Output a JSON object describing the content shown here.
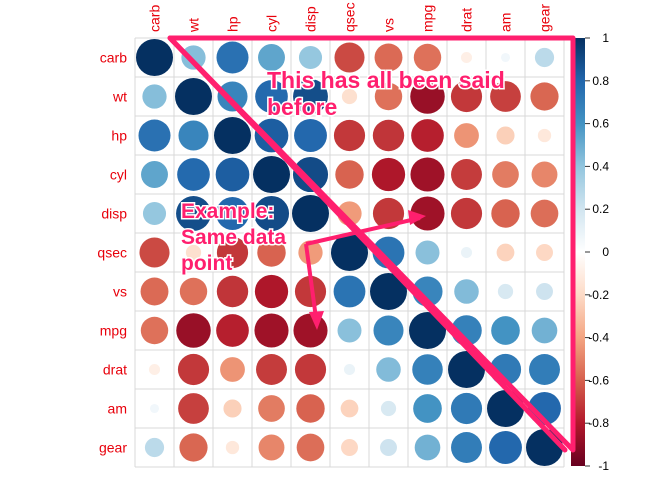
{
  "chart_data": {
    "type": "heatmap",
    "title": "",
    "variables": [
      "carb",
      "wt",
      "hp",
      "cyl",
      "disp",
      "qsec",
      "vs",
      "mpg",
      "drat",
      "am",
      "gear"
    ],
    "matrix": [
      [
        1.0,
        0.43,
        0.75,
        0.53,
        0.39,
        -0.66,
        -0.57,
        -0.55,
        -0.09,
        0.06,
        0.27
      ],
      [
        0.43,
        1.0,
        0.66,
        0.78,
        0.89,
        -0.17,
        -0.55,
        -0.87,
        -0.71,
        -0.69,
        -0.58
      ],
      [
        0.75,
        0.66,
        1.0,
        0.83,
        0.79,
        -0.71,
        -0.72,
        -0.78,
        -0.45,
        -0.24,
        -0.13
      ],
      [
        0.53,
        0.78,
        0.83,
        1.0,
        0.9,
        -0.59,
        -0.81,
        -0.85,
        -0.7,
        -0.52,
        -0.49
      ],
      [
        0.39,
        0.89,
        0.79,
        0.9,
        1.0,
        -0.43,
        -0.71,
        -0.85,
        -0.71,
        -0.59,
        -0.56
      ],
      [
        -0.66,
        -0.17,
        -0.71,
        -0.59,
        -0.43,
        1.0,
        0.74,
        0.42,
        0.09,
        -0.23,
        -0.21
      ],
      [
        -0.57,
        -0.55,
        -0.72,
        -0.81,
        -0.71,
        0.74,
        1.0,
        0.66,
        0.44,
        0.17,
        0.21
      ],
      [
        -0.55,
        -0.87,
        -0.78,
        -0.85,
        -0.85,
        0.42,
        0.66,
        1.0,
        0.68,
        0.6,
        0.48
      ],
      [
        -0.09,
        -0.71,
        -0.45,
        -0.7,
        -0.71,
        0.09,
        0.44,
        0.68,
        1.0,
        0.71,
        0.7
      ],
      [
        0.06,
        -0.69,
        -0.24,
        -0.52,
        -0.59,
        -0.23,
        0.17,
        0.6,
        0.71,
        1.0,
        0.79
      ],
      [
        0.27,
        -0.58,
        -0.13,
        -0.49,
        -0.56,
        -0.21,
        0.21,
        0.48,
        0.7,
        0.79,
        1.0
      ]
    ],
    "color_scale": {
      "min": -1,
      "max": 1,
      "ticks": [
        "1",
        "0.8",
        "0.6",
        "0.4",
        "0.2",
        "0",
        "-0.2",
        "-0.4",
        "-0.6",
        "-0.8",
        "-1"
      ],
      "stops": [
        "#67001F",
        "#B2182B",
        "#D6604D",
        "#F4A582",
        "#FDDBC7",
        "#FFFFFF",
        "#D1E5F0",
        "#92C5DE",
        "#4393C3",
        "#2166AC",
        "#053061"
      ]
    },
    "label_color": "#E8000B",
    "grid": true,
    "legend_placement": "right"
  },
  "annotations": {
    "color": "#FF1F6E",
    "note_1": "This has all been said",
    "note_2": "before",
    "example_1": "Example:",
    "example_2": "Same data",
    "example_3": "point"
  }
}
